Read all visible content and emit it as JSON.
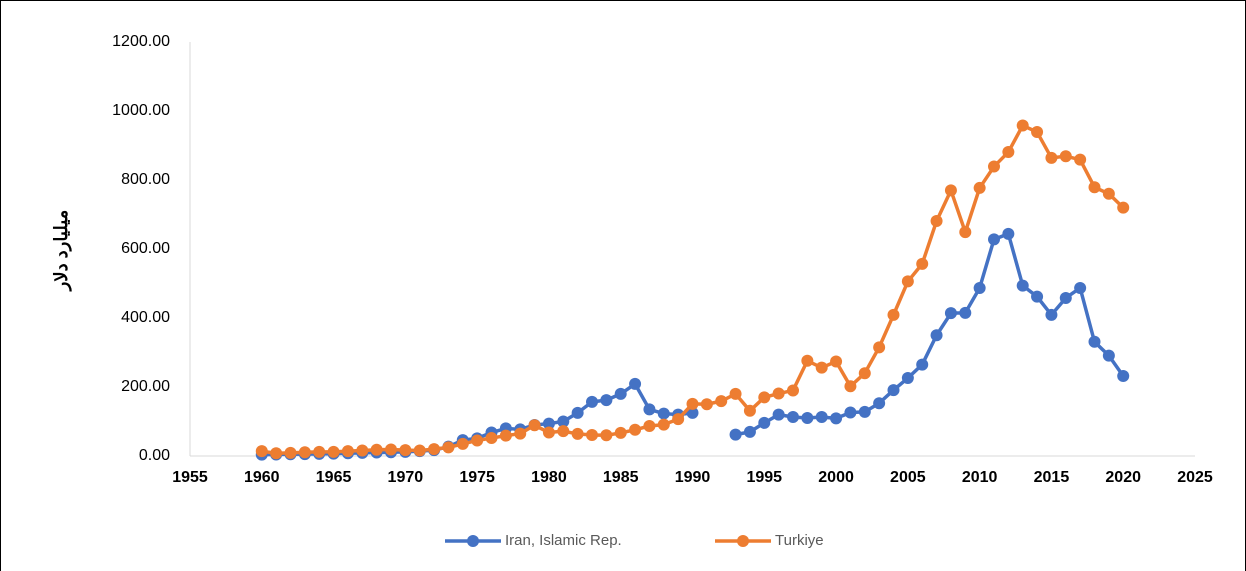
{
  "chart_data": {
    "type": "line",
    "y_label": "میلیارد دلار",
    "x": [
      1960,
      1961,
      1962,
      1963,
      1964,
      1965,
      1966,
      1967,
      1968,
      1969,
      1970,
      1971,
      1972,
      1973,
      1974,
      1975,
      1976,
      1977,
      1978,
      1979,
      1980,
      1981,
      1982,
      1983,
      1984,
      1985,
      1986,
      1987,
      1988,
      1989,
      1990,
      1991,
      1992,
      1993,
      1994,
      1995,
      1996,
      1997,
      1998,
      1999,
      2000,
      2001,
      2002,
      2003,
      2004,
      2005,
      2006,
      2007,
      2008,
      2009,
      2010,
      2011,
      2012,
      2013,
      2014,
      2015,
      2016,
      2017,
      2018,
      2019,
      2020
    ],
    "series": [
      {
        "name": "Iran, Islamic Rep.",
        "color": "#4472c4",
        "values": [
          4,
          4.5,
          5,
          5.5,
          6,
          7,
          8,
          9,
          10,
          11,
          12,
          14,
          17,
          27,
          46,
          51,
          68,
          80,
          77,
          90,
          94,
          100,
          125,
          157,
          162,
          180,
          209,
          135,
          123,
          120,
          125,
          null,
          null,
          62,
          70,
          96,
          120,
          113,
          110,
          113,
          109,
          126,
          128,
          153,
          191,
          226,
          265,
          350,
          414,
          415,
          487,
          628,
          644,
          494,
          462,
          409,
          458,
          487,
          331,
          291,
          232
        ]
      },
      {
        "name": "Turkiye",
        "color": "#ed7d31",
        "values": [
          14,
          8,
          9,
          11,
          12,
          12,
          14,
          16,
          18,
          19,
          17,
          16,
          20,
          25,
          35,
          45,
          52,
          59,
          65,
          89,
          68,
          72,
          64,
          61,
          60,
          67,
          76,
          87,
          91,
          107,
          151,
          150,
          159,
          180,
          131,
          170,
          181,
          190,
          276,
          256,
          274,
          202,
          240,
          315,
          409,
          506,
          557,
          681,
          770,
          649,
          777,
          839,
          881,
          958,
          939,
          864,
          869,
          859,
          779,
          760,
          720
        ]
      }
    ],
    "xlim": [
      1955,
      2025
    ],
    "xticks": [
      1955,
      1960,
      1965,
      1970,
      1975,
      1980,
      1985,
      1990,
      1995,
      2000,
      2005,
      2010,
      2015,
      2020,
      2025
    ],
    "ylim": [
      0,
      1200
    ],
    "yticks": [
      {
        "value": 0,
        "label": "0.00"
      },
      {
        "value": 200,
        "label": "200.00"
      },
      {
        "value": 400,
        "label": "400.00"
      },
      {
        "value": 600,
        "label": "600.00"
      },
      {
        "value": 800,
        "label": "800.00"
      },
      {
        "value": 1000,
        "label": "1000.00"
      },
      {
        "value": 1200,
        "label": "1200.00"
      }
    ],
    "grid": false,
    "legend": "bottom"
  }
}
